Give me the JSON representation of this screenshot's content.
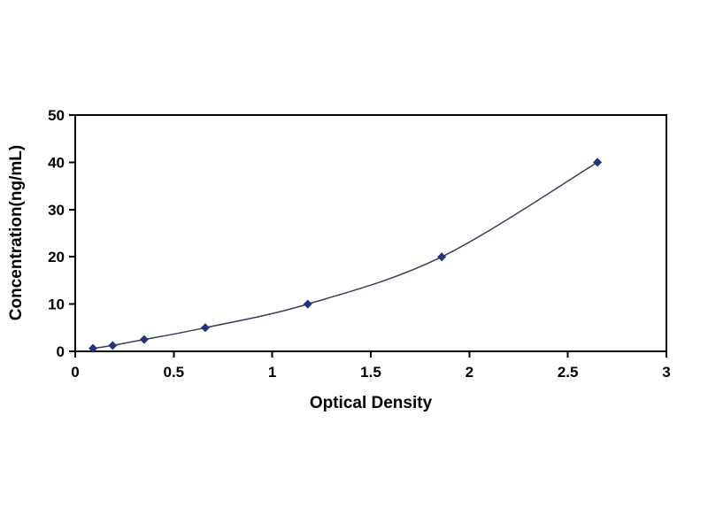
{
  "chart_data": {
    "type": "line",
    "title": "",
    "xlabel": "Optical Density",
    "ylabel": "Concentration(ng/mL)",
    "xlim": [
      0,
      3
    ],
    "ylim": [
      0,
      50
    ],
    "xticks": [
      {
        "value": 0,
        "label": "0"
      },
      {
        "value": 0.5,
        "label": "0.5"
      },
      {
        "value": 1,
        "label": "1"
      },
      {
        "value": 1.5,
        "label": "1.5"
      },
      {
        "value": 2,
        "label": "2"
      },
      {
        "value": 2.5,
        "label": "2.5"
      },
      {
        "value": 3,
        "label": "3"
      }
    ],
    "yticks": [
      {
        "value": 0,
        "label": "0"
      },
      {
        "value": 10,
        "label": "10"
      },
      {
        "value": 20,
        "label": "20"
      },
      {
        "value": 30,
        "label": "30"
      },
      {
        "value": 40,
        "label": "40"
      },
      {
        "value": 50,
        "label": "50"
      }
    ],
    "grid": false,
    "legend": null,
    "marker": "diamond",
    "marker_size": 5,
    "marker_color": "#26317e",
    "line_color": "#3c3c5e",
    "line_width": 1.5,
    "axis_color": "#000000",
    "points": [
      {
        "x": 0.09,
        "y": 0.625
      },
      {
        "x": 0.19,
        "y": 1.25
      },
      {
        "x": 0.35,
        "y": 2.5
      },
      {
        "x": 0.66,
        "y": 5
      },
      {
        "x": 1.18,
        "y": 10
      },
      {
        "x": 1.86,
        "y": 20
      },
      {
        "x": 2.65,
        "y": 40
      }
    ]
  }
}
